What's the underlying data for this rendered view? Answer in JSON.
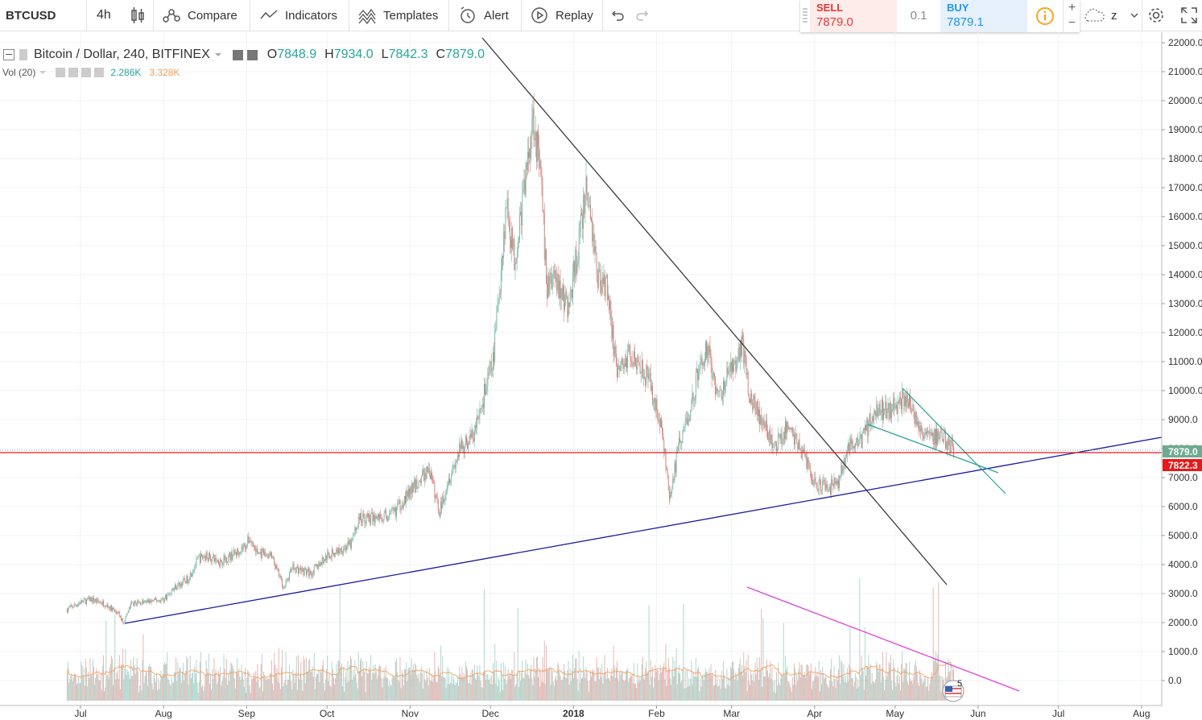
{
  "toolbar": {
    "symbol": "BTCUSD",
    "interval": "4h",
    "compare": "Compare",
    "indicators": "Indicators",
    "templates": "Templates",
    "alert": "Alert",
    "replay": "Replay",
    "layout_name": "z"
  },
  "trade": {
    "sell_label": "SELL",
    "sell_price": "7879.0",
    "spread": "0.1",
    "buy_label": "BUY",
    "buy_price": "7879.1"
  },
  "legend": {
    "title": "Bitcoin / Dollar, 240, BITFINEX",
    "o_label": "O",
    "o": "7848.9",
    "h_label": "H",
    "h": "7934.0",
    "l_label": "L",
    "l": "7842.3",
    "c_label": "C",
    "c": "7879.0",
    "vol_label": "Vol (20)",
    "vol_value": "2.286K",
    "vol_ma": "3.328K"
  },
  "colors": {
    "up": "#6fb8a6",
    "down": "#d77a74",
    "last_price": "#6cab8f",
    "bid_line": "#e8191b",
    "trendline_dark": "#3a3a3a",
    "trendline_blue": "#1a1aa6",
    "trendline_teal": "#2aa198",
    "trendline_magenta": "#e040d8",
    "vol_ma": "#f2a05c"
  },
  "chart_data": {
    "type": "candlestick",
    "x_ticks": [
      "Jul",
      "Aug",
      "Sep",
      "Oct",
      "Nov",
      "Dec",
      "2018",
      "Feb",
      "Mar",
      "Apr",
      "May",
      "Jun",
      "Jul",
      "Aug"
    ],
    "y_ticks": [
      "22000.0",
      "21000.0",
      "20000.0",
      "19000.0",
      "18000.0",
      "17000.0",
      "16000.0",
      "15000.0",
      "14000.0",
      "13000.0",
      "12000.0",
      "11000.0",
      "10000.0",
      "9000.0",
      "8000.0",
      "7000.0",
      "6000.0",
      "5000.0",
      "4000.0",
      "3000.0",
      "2000.0",
      "1000.0",
      "0.0"
    ],
    "last_price_label": "7879.0",
    "bid_price_label": "7822.3",
    "event_badge": "5",
    "price_path": [
      [
        "2017-06-26",
        2450
      ],
      [
        "2017-07-01",
        2700
      ],
      [
        "2017-07-05",
        2800
      ],
      [
        "2017-07-10",
        2650
      ],
      [
        "2017-07-15",
        2300
      ],
      [
        "2017-07-17",
        2000
      ],
      [
        "2017-07-20",
        2650
      ],
      [
        "2017-07-25",
        2700
      ],
      [
        "2017-08-01",
        2800
      ],
      [
        "2017-08-05",
        3200
      ],
      [
        "2017-08-10",
        3500
      ],
      [
        "2017-08-14",
        4200
      ],
      [
        "2017-08-17",
        4300
      ],
      [
        "2017-08-22",
        4100
      ],
      [
        "2017-08-28",
        4400
      ],
      [
        "2017-09-01",
        4700
      ],
      [
        "2017-09-02",
        4900
      ],
      [
        "2017-09-05",
        4400
      ],
      [
        "2017-09-10",
        4300
      ],
      [
        "2017-09-15",
        3200
      ],
      [
        "2017-09-18",
        3900
      ],
      [
        "2017-09-25",
        3700
      ],
      [
        "2017-10-01",
        4300
      ],
      [
        "2017-10-10",
        4700
      ],
      [
        "2017-10-13",
        5600
      ],
      [
        "2017-10-18",
        5600
      ],
      [
        "2017-10-25",
        5700
      ],
      [
        "2017-11-01",
        6500
      ],
      [
        "2017-11-08",
        7300
      ],
      [
        "2017-11-12",
        5800
      ],
      [
        "2017-11-15",
        6900
      ],
      [
        "2017-11-20",
        8000
      ],
      [
        "2017-11-25",
        8500
      ],
      [
        "2017-11-29",
        10000
      ],
      [
        "2017-12-02",
        11000
      ],
      [
        "2017-12-07",
        16500
      ],
      [
        "2017-12-10",
        14500
      ],
      [
        "2017-12-13",
        16500
      ],
      [
        "2017-12-17",
        19600
      ],
      [
        "2017-12-20",
        17000
      ],
      [
        "2017-12-22",
        13500
      ],
      [
        "2017-12-25",
        14000
      ],
      [
        "2017-12-30",
        12800
      ],
      [
        "2018-01-02",
        14500
      ],
      [
        "2018-01-06",
        17000
      ],
      [
        "2018-01-10",
        14000
      ],
      [
        "2018-01-14",
        13500
      ],
      [
        "2018-01-17",
        10500
      ],
      [
        "2018-01-22",
        11300
      ],
      [
        "2018-01-26",
        11000
      ],
      [
        "2018-01-30",
        10100
      ],
      [
        "2018-02-03",
        8600
      ],
      [
        "2018-02-06",
        6200
      ],
      [
        "2018-02-09",
        8000
      ],
      [
        "2018-02-14",
        9500
      ],
      [
        "2018-02-17",
        10900
      ],
      [
        "2018-02-20",
        11500
      ],
      [
        "2018-02-24",
        9700
      ],
      [
        "2018-03-01",
        10800
      ],
      [
        "2018-03-05",
        11500
      ],
      [
        "2018-03-08",
        9800
      ],
      [
        "2018-03-12",
        9000
      ],
      [
        "2018-03-17",
        8000
      ],
      [
        "2018-03-22",
        8800
      ],
      [
        "2018-03-28",
        7800
      ],
      [
        "2018-04-01",
        6800
      ],
      [
        "2018-04-06",
        6600
      ],
      [
        "2018-04-10",
        6900
      ],
      [
        "2018-04-13",
        8000
      ],
      [
        "2018-04-18",
        8200
      ],
      [
        "2018-04-24",
        9400
      ],
      [
        "2018-04-28",
        9300
      ],
      [
        "2018-05-05",
        9800
      ],
      [
        "2018-05-08",
        9200
      ],
      [
        "2018-05-12",
        8600
      ],
      [
        "2018-05-16",
        8400
      ],
      [
        "2018-05-20",
        8300
      ],
      [
        "2018-05-23",
        7900
      ]
    ],
    "volume_series": "per-candle volume bars with a 20-period volume moving average"
  }
}
